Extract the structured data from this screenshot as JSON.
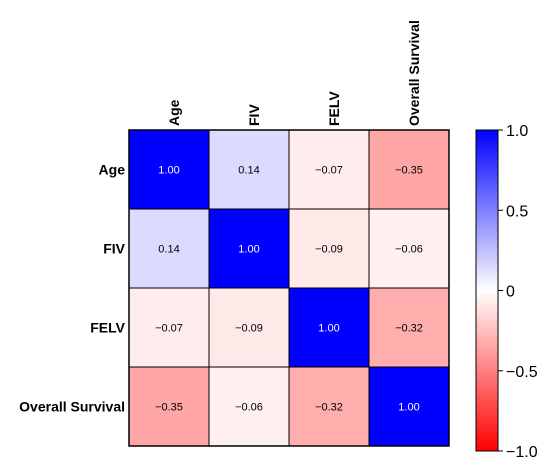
{
  "chart_data": {
    "type": "heatmap",
    "variables": [
      "Age",
      "FIV",
      "FELV",
      "Overall Survival"
    ],
    "matrix": [
      [
        1.0,
        0.14,
        -0.07,
        -0.35
      ],
      [
        0.14,
        1.0,
        -0.09,
        -0.06
      ],
      [
        -0.07,
        -0.09,
        1.0,
        -0.32
      ],
      [
        -0.35,
        -0.06,
        -0.32,
        1.0
      ]
    ],
    "value_labels": [
      [
        "1.00",
        "0.14",
        "−0.07",
        "−0.35"
      ],
      [
        "0.14",
        "1.00",
        "−0.09",
        "−0.06"
      ],
      [
        "−0.07",
        "−0.09",
        "1.00",
        "−0.32"
      ],
      [
        "−0.35",
        "−0.06",
        "−0.32",
        "1.00"
      ]
    ],
    "colorbar": {
      "range": [
        -1.0,
        1.0
      ],
      "ticks": [
        1.0,
        0.5,
        0,
        -0.5,
        -1.0
      ],
      "tick_labels": [
        "1.0",
        "0.5",
        "0",
        "−0.5",
        "−1.0"
      ],
      "colors": {
        "negative": "#ff0000",
        "zero": "#ffffff",
        "positive": "#0000ff"
      }
    },
    "legend_position": "right",
    "grid": true
  }
}
